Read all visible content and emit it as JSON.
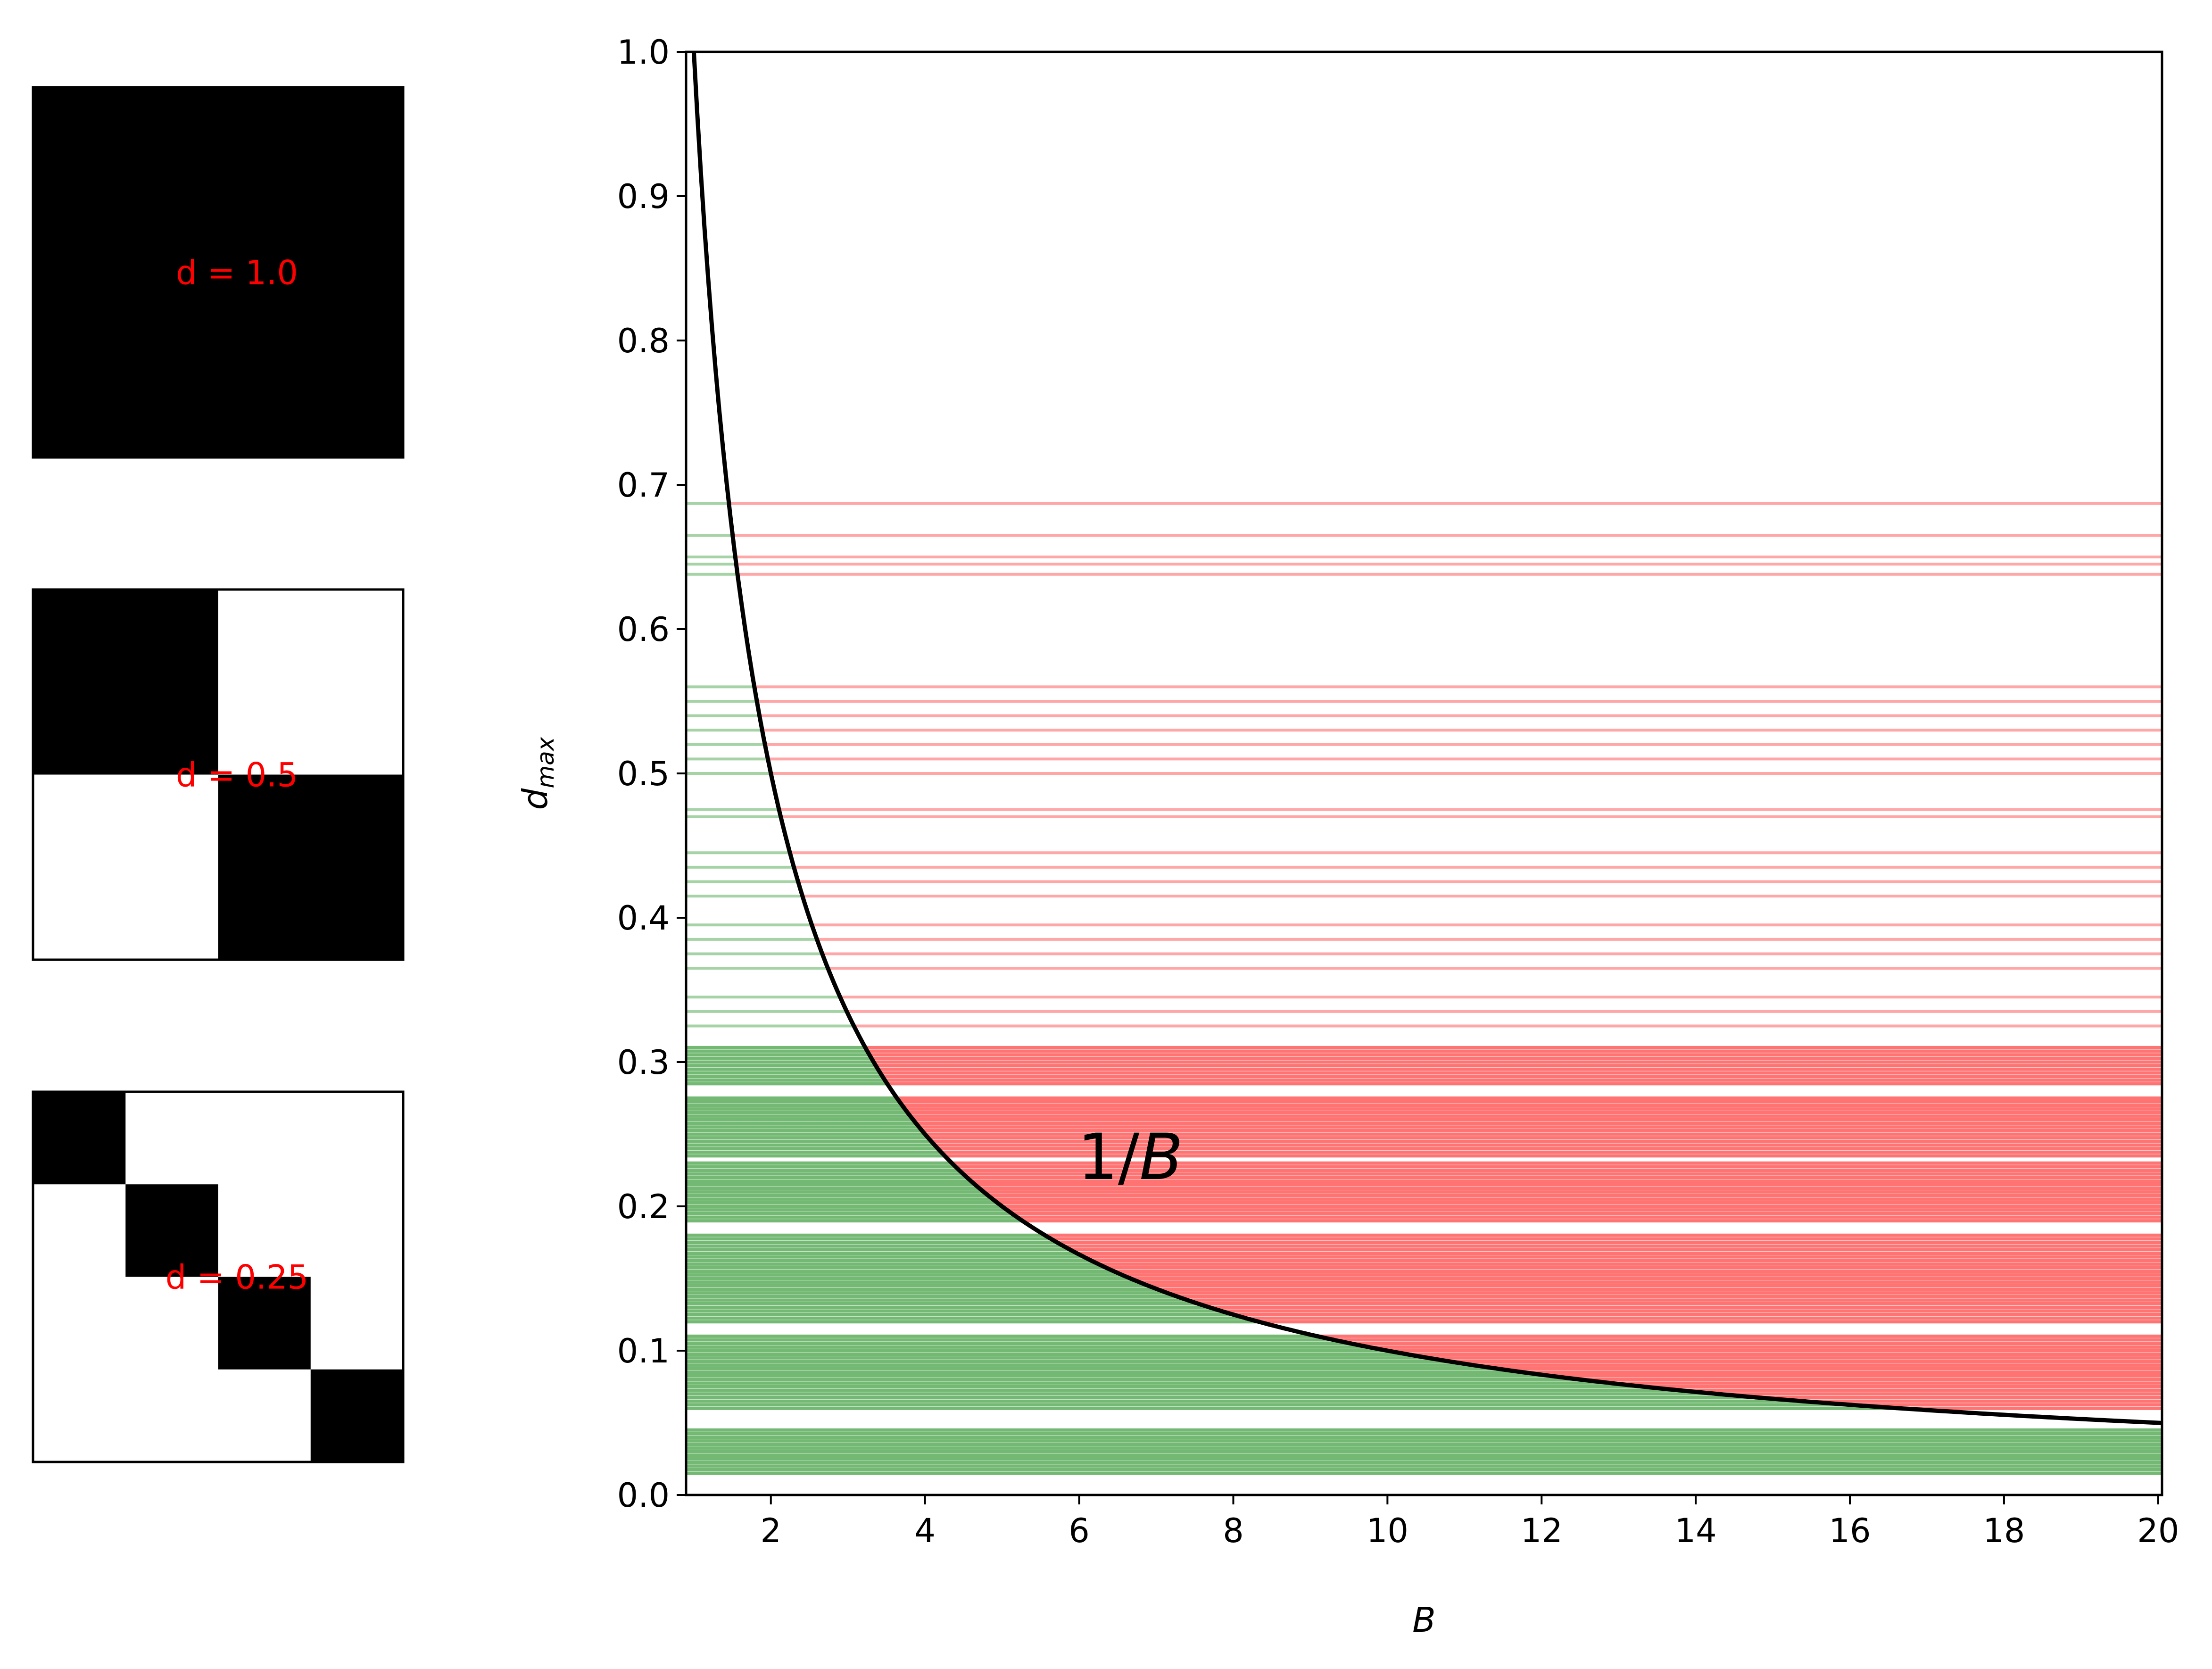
{
  "chart_data": {
    "type": "line",
    "xlabel": "B",
    "ylabel": "d_max",
    "xlim": [
      0.9,
      20.05
    ],
    "ylim": [
      0,
      1.0
    ],
    "x_ticks": [
      2,
      4,
      6,
      8,
      10,
      12,
      14,
      16,
      18,
      20
    ],
    "y_ticks": [
      0.0,
      0.1,
      0.2,
      0.3,
      0.4,
      0.5,
      0.6,
      0.7,
      0.8,
      0.9,
      1.0
    ],
    "curve": {
      "label_main": "1/",
      "label_var": "B",
      "function": "1/B",
      "color": "#000000",
      "label_position_data": [
        6.0,
        0.23
      ]
    },
    "bands": {
      "below_curve_color": "#008000",
      "above_curve_color": "#ff0000",
      "dense_ranges": [
        [
          0.015,
          0.045
        ],
        [
          0.06,
          0.11
        ],
        [
          0.12,
          0.18
        ],
        [
          0.19,
          0.23
        ],
        [
          0.235,
          0.275
        ],
        [
          0.285,
          0.31
        ]
      ],
      "sparse_levels": [
        0.325,
        0.335,
        0.345,
        0.365,
        0.375,
        0.385,
        0.395,
        0.415,
        0.425,
        0.435,
        0.445,
        0.47,
        0.475,
        0.5,
        0.51,
        0.52,
        0.53,
        0.54,
        0.55,
        0.56,
        0.638,
        0.645,
        0.65,
        0.665,
        0.687
      ]
    },
    "side_panels": [
      {
        "label": "d = 1.0",
        "grid": 1
      },
      {
        "label": "d = 0.5",
        "grid": 2
      },
      {
        "label": "d = 0.25",
        "grid": 4
      }
    ]
  }
}
